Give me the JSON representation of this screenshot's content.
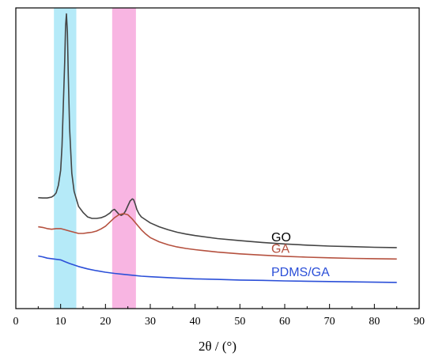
{
  "chart_data": {
    "type": "line",
    "xlabel": "2θ / (°)",
    "ylabel": "",
    "xlim": [
      0,
      90
    ],
    "xticks": [
      0,
      10,
      20,
      30,
      40,
      50,
      60,
      70,
      80,
      90
    ],
    "ylim": [
      0,
      1
    ],
    "y_ticks_shown": false,
    "grid": false,
    "highlight_bands": [
      {
        "x_range": [
          8.5,
          13.5
        ],
        "color": "#a8e6f7"
      },
      {
        "x_range": [
          21.5,
          26.8
        ],
        "color": "#f7a8dd"
      }
    ],
    "series": [
      {
        "name": "GO",
        "color": "#444444",
        "x": [
          5,
          6,
          7,
          8,
          8.5,
          9,
          9.5,
          10,
          10.3,
          10.6,
          10.9,
          11.1,
          11.3,
          11.5,
          11.7,
          12,
          12.5,
          13,
          14,
          15,
          16,
          17,
          18,
          19,
          20,
          21,
          21.5,
          22,
          22.5,
          23,
          23.5,
          24,
          24.5,
          25,
          25.5,
          26,
          26.3,
          26.7,
          27,
          27.5,
          28,
          29,
          30,
          32,
          34,
          36,
          38,
          40,
          45,
          50,
          55,
          60,
          65,
          70,
          75,
          80,
          85
        ],
        "y": [
          0.369,
          0.368,
          0.368,
          0.371,
          0.376,
          0.385,
          0.41,
          0.46,
          0.54,
          0.68,
          0.82,
          0.94,
          0.98,
          0.92,
          0.78,
          0.6,
          0.45,
          0.39,
          0.34,
          0.32,
          0.305,
          0.3,
          0.3,
          0.302,
          0.308,
          0.318,
          0.326,
          0.33,
          0.322,
          0.314,
          0.31,
          0.314,
          0.325,
          0.342,
          0.358,
          0.365,
          0.362,
          0.345,
          0.33,
          0.315,
          0.305,
          0.295,
          0.285,
          0.272,
          0.262,
          0.254,
          0.248,
          0.243,
          0.233,
          0.226,
          0.22,
          0.215,
          0.211,
          0.208,
          0.206,
          0.204,
          0.203
        ]
      },
      {
        "name": "GA",
        "color": "#b5513f",
        "x": [
          5,
          6,
          7,
          8,
          9,
          10,
          11,
          12,
          13,
          14,
          15,
          16,
          17,
          18,
          19,
          20,
          21,
          22,
          23,
          24,
          25,
          26,
          27,
          28,
          29,
          30,
          32,
          34,
          36,
          38,
          40,
          45,
          50,
          55,
          60,
          65,
          70,
          75,
          80,
          85
        ],
        "y": [
          0.272,
          0.27,
          0.266,
          0.264,
          0.266,
          0.266,
          0.262,
          0.258,
          0.254,
          0.25,
          0.25,
          0.252,
          0.254,
          0.258,
          0.265,
          0.274,
          0.288,
          0.302,
          0.312,
          0.316,
          0.312,
          0.298,
          0.28,
          0.262,
          0.248,
          0.236,
          0.222,
          0.212,
          0.205,
          0.2,
          0.196,
          0.188,
          0.182,
          0.178,
          0.174,
          0.171,
          0.169,
          0.167,
          0.166,
          0.165
        ]
      },
      {
        "name": "PDMS/GA",
        "color": "#2b4fd8",
        "x": [
          5,
          6,
          7,
          8,
          9,
          10,
          11,
          12,
          13,
          14,
          15,
          16,
          18,
          20,
          22,
          24,
          26,
          28,
          30,
          35,
          40,
          45,
          50,
          55,
          60,
          65,
          70,
          75,
          80,
          85
        ],
        "y": [
          0.175,
          0.172,
          0.168,
          0.166,
          0.164,
          0.162,
          0.156,
          0.15,
          0.145,
          0.14,
          0.136,
          0.132,
          0.126,
          0.121,
          0.117,
          0.114,
          0.111,
          0.108,
          0.106,
          0.102,
          0.099,
          0.097,
          0.095,
          0.094,
          0.092,
          0.091,
          0.09,
          0.089,
          0.088,
          0.087
        ]
      }
    ]
  }
}
